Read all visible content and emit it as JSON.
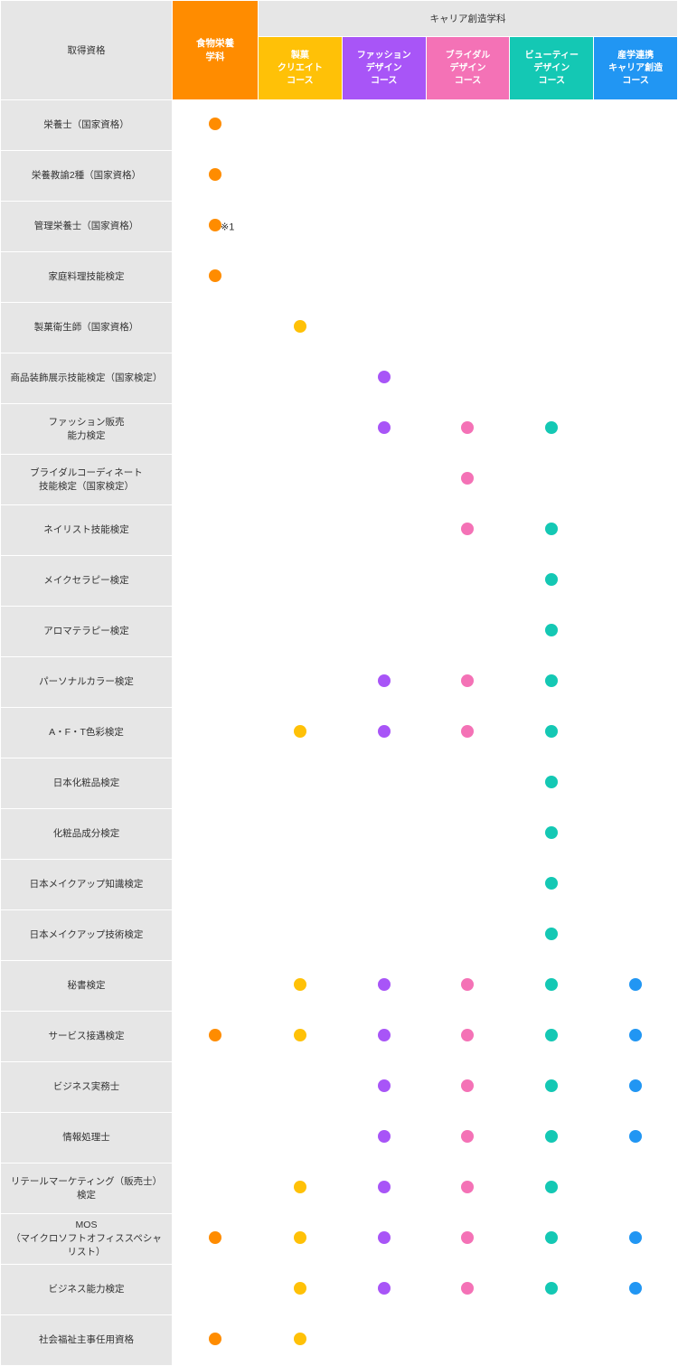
{
  "header": {
    "qualification": "取得資格",
    "food_dept": "食物栄養\n学科",
    "career_dept": "キャリア創造学科",
    "courses": [
      "製菓\nクリエイト\nコース",
      "ファッション\nデザイン\nコース",
      "ブライダル\nデザイン\nコース",
      "ビューティー\nデザイン\nコース",
      "産学連携\nキャリア創造\nコース"
    ]
  },
  "colors": {
    "orange": "#ff8c00",
    "yellow": "#ffc107",
    "purple": "#a855f7",
    "pink": "#f472b6",
    "teal": "#14c8b4",
    "blue": "#2196f3"
  },
  "note": "※1",
  "rows": [
    {
      "label": "栄養士（国家資格）",
      "cells": [
        "orange",
        "",
        "",
        "",
        "",
        ""
      ]
    },
    {
      "label": "栄養教諭2種（国家資格）",
      "cells": [
        "orange",
        "",
        "",
        "",
        "",
        ""
      ]
    },
    {
      "label": "管理栄養士（国家資格）",
      "cells": [
        "orange",
        "",
        "",
        "",
        "",
        ""
      ],
      "note_col": 0
    },
    {
      "label": "家庭料理技能検定",
      "cells": [
        "orange",
        "",
        "",
        "",
        "",
        ""
      ]
    },
    {
      "label": "製菓衛生師（国家資格）",
      "cells": [
        "",
        "yellow",
        "",
        "",
        "",
        ""
      ]
    },
    {
      "label": "商品装飾展示技能検定（国家検定）",
      "cells": [
        "",
        "",
        "purple",
        "",
        "",
        ""
      ]
    },
    {
      "label": "ファッション販売\n能力検定",
      "cells": [
        "",
        "",
        "purple",
        "pink",
        "teal",
        ""
      ]
    },
    {
      "label": "ブライダルコーディネート\n技能検定（国家検定）",
      "cells": [
        "",
        "",
        "",
        "pink",
        "",
        ""
      ]
    },
    {
      "label": "ネイリスト技能検定",
      "cells": [
        "",
        "",
        "",
        "pink",
        "teal",
        ""
      ]
    },
    {
      "label": "メイクセラピー検定",
      "cells": [
        "",
        "",
        "",
        "",
        "teal",
        ""
      ]
    },
    {
      "label": "アロマテラピー検定",
      "cells": [
        "",
        "",
        "",
        "",
        "teal",
        ""
      ]
    },
    {
      "label": "パーソナルカラー検定",
      "cells": [
        "",
        "",
        "purple",
        "pink",
        "teal",
        ""
      ]
    },
    {
      "label": "A・F・T色彩検定",
      "cells": [
        "",
        "yellow",
        "purple",
        "pink",
        "teal",
        ""
      ]
    },
    {
      "label": "日本化粧品検定",
      "cells": [
        "",
        "",
        "",
        "",
        "teal",
        ""
      ]
    },
    {
      "label": "化粧品成分検定",
      "cells": [
        "",
        "",
        "",
        "",
        "teal",
        ""
      ]
    },
    {
      "label": "日本メイクアップ知識検定",
      "cells": [
        "",
        "",
        "",
        "",
        "teal",
        ""
      ]
    },
    {
      "label": "日本メイクアップ技術検定",
      "cells": [
        "",
        "",
        "",
        "",
        "teal",
        ""
      ]
    },
    {
      "label": "秘書検定",
      "cells": [
        "",
        "yellow",
        "purple",
        "pink",
        "teal",
        "blue"
      ]
    },
    {
      "label": "サービス接遇検定",
      "cells": [
        "orange",
        "yellow",
        "purple",
        "pink",
        "teal",
        "blue"
      ]
    },
    {
      "label": "ビジネス実務士",
      "cells": [
        "",
        "",
        "purple",
        "pink",
        "teal",
        "blue"
      ]
    },
    {
      "label": "情報処理士",
      "cells": [
        "",
        "",
        "purple",
        "pink",
        "teal",
        "blue"
      ]
    },
    {
      "label": "リテールマーケティング（販売士）検定",
      "cells": [
        "",
        "yellow",
        "purple",
        "pink",
        "teal",
        ""
      ]
    },
    {
      "label": "MOS\n（マイクロソフトオフィススペシャリスト）",
      "cells": [
        "orange",
        "yellow",
        "purple",
        "pink",
        "teal",
        "blue"
      ]
    },
    {
      "label": "ビジネス能力検定",
      "cells": [
        "",
        "yellow",
        "purple",
        "pink",
        "teal",
        "blue"
      ]
    },
    {
      "label": "社会福祉主事任用資格",
      "cells": [
        "orange",
        "yellow",
        "",
        "",
        "",
        ""
      ]
    }
  ]
}
